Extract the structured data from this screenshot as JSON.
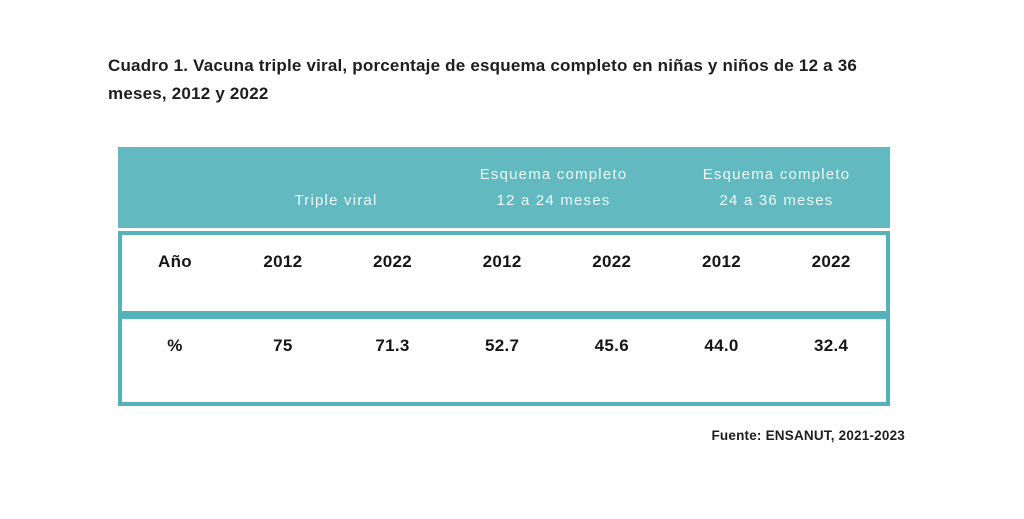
{
  "title": "Cuadro 1. Vacuna triple viral, porcentaje de esquema completo en niñas y niños de 12 a 36 meses, 2012 y 2022",
  "colors": {
    "header_background": "#62b9c0",
    "table_border": "#55b2ba",
    "header_text": "#edf9f9",
    "body_text": "#161616",
    "page_background": "#ffffff"
  },
  "table": {
    "header_groups": [
      {
        "line1": "",
        "line2": ""
      },
      {
        "line1": "",
        "line2": "Triple viral"
      },
      {
        "line1": "Esquema completo",
        "line2": "12 a 24 meses"
      },
      {
        "line1": "Esquema completo",
        "line2": "24 a 36 meses"
      }
    ],
    "rows": [
      {
        "label": "Año",
        "values": [
          "2012",
          "2022",
          "2012",
          "2022",
          "2012",
          "2022"
        ]
      },
      {
        "label": "%",
        "values": [
          "75",
          "71.3",
          "52.7",
          "45.6",
          "44.0",
          "32.4"
        ]
      }
    ]
  },
  "source": "Fuente: ENSANUT, 2021-2023",
  "chart_data": {
    "type": "table",
    "title": "Cuadro 1. Vacuna triple viral, porcentaje de esquema completo en niñas y niños de 12 a 36 meses, 2012 y 2022",
    "column_groups": [
      "Triple viral",
      "Esquema completo 12 a 24 meses",
      "Esquema completo 24 a 36 meses"
    ],
    "categories": [
      "2012",
      "2022"
    ],
    "series": [
      {
        "name": "Triple viral",
        "values": [
          75,
          71.3
        ]
      },
      {
        "name": "Esquema completo 12 a 24 meses",
        "values": [
          52.7,
          45.6
        ]
      },
      {
        "name": "Esquema completo 24 a 36 meses",
        "values": [
          44.0,
          32.4
        ]
      }
    ],
    "unit": "%",
    "source": "Fuente: ENSANUT, 2021-2023"
  }
}
